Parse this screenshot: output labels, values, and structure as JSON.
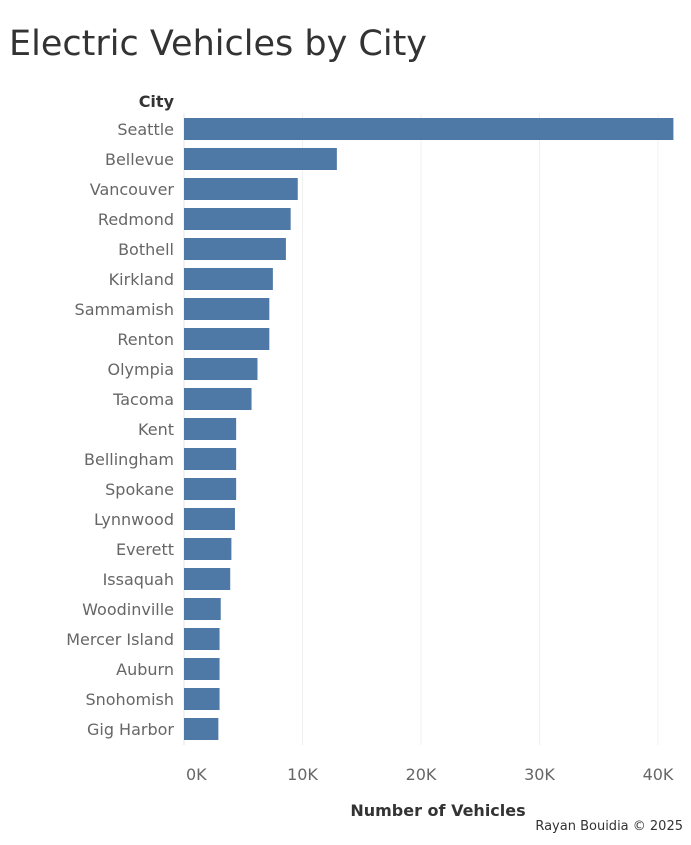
{
  "chart_data": {
    "type": "bar",
    "orientation": "horizontal",
    "title": "Electric Vehicles by City",
    "category_axis_title": "City",
    "xlabel": "Number of Vehicles",
    "categories": [
      "Seattle",
      "Bellevue",
      "Vancouver",
      "Redmond",
      "Bothell",
      "Kirkland",
      "Sammamish",
      "Renton",
      "Olympia",
      "Tacoma",
      "Kent",
      "Bellingham",
      "Spokane",
      "Lynnwood",
      "Everett",
      "Issaquah",
      "Woodinville",
      "Mercer Island",
      "Auburn",
      "Snohomish",
      "Gig Harbor"
    ],
    "values": [
      41300,
      12900,
      9600,
      9000,
      8600,
      7500,
      7200,
      7200,
      6200,
      5700,
      4400,
      4400,
      4400,
      4300,
      4000,
      3900,
      3100,
      3000,
      3000,
      3000,
      2900
    ],
    "xticks": [
      0,
      10000,
      20000,
      30000,
      40000
    ],
    "xtick_labels": [
      "0K",
      "10K",
      "20K",
      "30K",
      "40K"
    ],
    "xlim": [
      0,
      43000
    ],
    "grid": true,
    "bar_color": "#4e79a7"
  },
  "credit": "Rayan Bouidia © 2025"
}
